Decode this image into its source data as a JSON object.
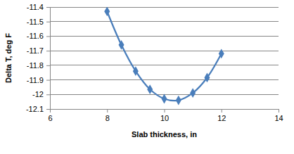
{
  "chart_data": {
    "type": "line",
    "x_label": "Slab thickness, in",
    "y_label": "Delta T, deg F",
    "x": [
      8,
      8.5,
      9,
      9.5,
      10,
      10.5,
      11,
      11.5,
      12
    ],
    "values": [
      -11.43,
      -11.66,
      -11.84,
      -11.965,
      -12.03,
      -12.04,
      -11.99,
      -11.885,
      -11.72
    ],
    "color": "#4a7ebb",
    "marker": "diamond",
    "line_style": "solid",
    "xlim": [
      6,
      14
    ],
    "xticks": [
      6,
      8,
      10,
      12,
      14
    ],
    "ylim": [
      -12.1,
      -11.4
    ],
    "yticks": [
      -11.4,
      -11.5,
      -11.6,
      -11.7,
      -11.8,
      -11.9,
      -12,
      -12.1
    ],
    "grid": true
  }
}
